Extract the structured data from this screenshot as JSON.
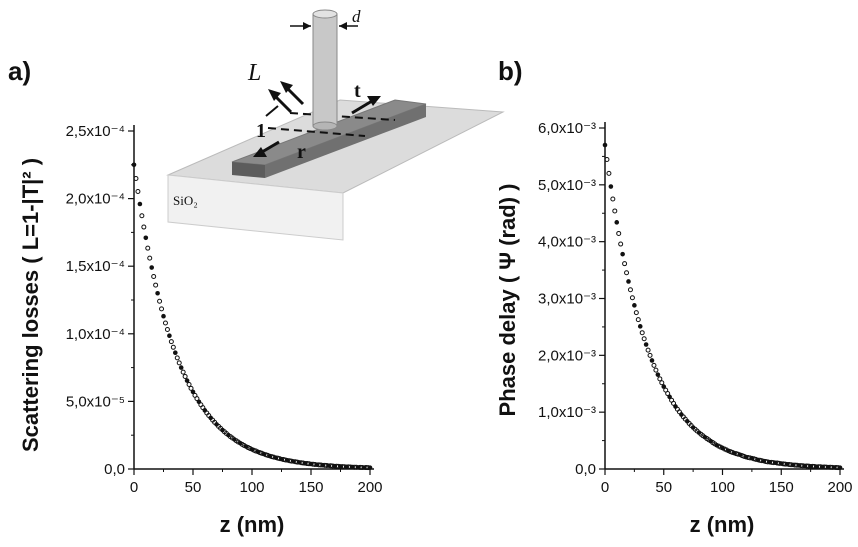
{
  "figure": {
    "inset": {
      "labels": {
        "L": "L",
        "d": "d",
        "t": "t",
        "r": "r",
        "one": "1",
        "substrate": "SiO₂"
      }
    }
  },
  "chart_data": [
    {
      "type": "scatter",
      "panel_label": "a)",
      "xlabel": "z (nm)",
      "ylabel": "Scattering losses ( L=1-|T|² )",
      "xlim": [
        0,
        200
      ],
      "ylim": [
        0,
        0.00025
      ],
      "x_ticks": [
        "0",
        "50",
        "100",
        "150",
        "200"
      ],
      "y_ticks": [
        "0,0",
        "5,0x10⁻⁵",
        "1,0x10⁻⁴",
        "1,5x10⁻⁴",
        "2,0x10⁻⁴",
        "2,5x10⁻⁴"
      ],
      "series": [
        {
          "x": [
            0,
            5,
            10,
            15,
            20,
            25,
            30,
            35,
            40,
            45,
            50,
            55,
            60,
            65,
            70,
            75,
            80,
            85,
            90,
            95,
            100,
            105,
            110,
            115,
            120,
            125,
            130,
            135,
            140,
            145,
            150,
            155,
            160,
            165,
            170,
            175,
            180,
            185,
            190,
            195,
            200
          ],
          "y": [
            0.000225,
            0.000196,
            0.000171,
            0.000149,
            0.00013,
            0.000113,
            9.86e-05,
            8.6e-05,
            7.5e-05,
            6.54e-05,
            5.7e-05,
            4.97e-05,
            4.34e-05,
            3.78e-05,
            3.3e-05,
            2.88e-05,
            2.51e-05,
            2.19e-05,
            1.91e-05,
            1.66e-05,
            1.45e-05,
            1.27e-05,
            1.11e-05,
            9.6e-06,
            8.4e-06,
            7.3e-06,
            6.4e-06,
            5.6e-06,
            4.9e-06,
            4.2e-06,
            3.7e-06,
            3.2e-06,
            2.8e-06,
            2.5e-06,
            2.1e-06,
            1.9e-06,
            1.6e-06,
            1.4e-06,
            1.2e-06,
            1.1e-06,
            1e-06
          ]
        }
      ]
    },
    {
      "type": "scatter",
      "panel_label": "b)",
      "xlabel": "z (nm)",
      "ylabel": "Phase delay ( Ψ (rad) )",
      "xlim": [
        0,
        200
      ],
      "ylim": [
        0,
        0.006
      ],
      "x_ticks": [
        "0",
        "50",
        "100",
        "150",
        "200"
      ],
      "y_ticks": [
        "0,0",
        "1,0x10⁻³",
        "2,0x10⁻³",
        "3,0x10⁻³",
        "4,0x10⁻³",
        "5,0x10⁻³",
        "6,0x10⁻³"
      ],
      "series": [
        {
          "x": [
            0,
            5,
            10,
            15,
            20,
            25,
            30,
            35,
            40,
            45,
            50,
            55,
            60,
            65,
            70,
            75,
            80,
            85,
            90,
            95,
            100,
            105,
            110,
            115,
            120,
            125,
            130,
            135,
            140,
            145,
            150,
            155,
            160,
            165,
            170,
            175,
            180,
            185,
            190,
            195,
            200
          ],
          "y": [
            0.0057,
            0.00497,
            0.00434,
            0.00378,
            0.0033,
            0.00288,
            0.00251,
            0.00219,
            0.00191,
            0.00166,
            0.00145,
            0.00127,
            0.0011,
            0.00096,
            0.00084,
            0.00073,
            0.00064,
            0.00056,
            0.00049,
            0.00042,
            0.00037,
            0.00032,
            0.00028,
            0.00025,
            0.00021,
            0.00019,
            0.00016,
            0.00014,
            0.00012,
            0.00011,
            9.5e-05,
            8.3e-05,
            7.2e-05,
            6.3e-05,
            5.5e-05,
            4.8e-05,
            4.2e-05,
            3.7e-05,
            3.2e-05,
            2.8e-05,
            2.4e-05
          ]
        }
      ]
    }
  ]
}
